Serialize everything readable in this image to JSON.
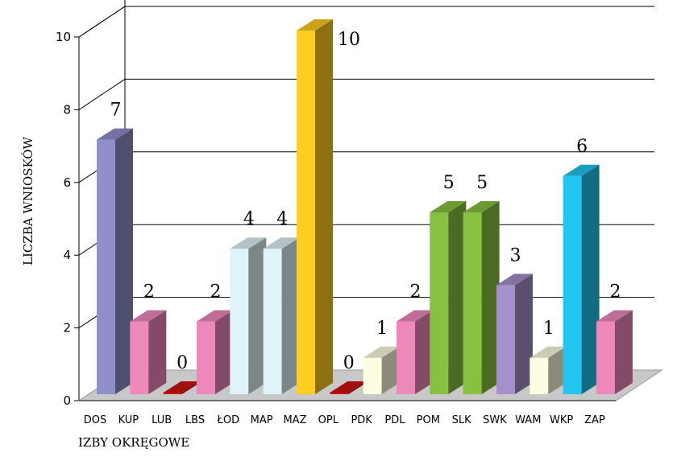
{
  "chart_data": {
    "type": "bar",
    "style": "3d",
    "categories": [
      "DOS",
      "KUP",
      "LUB",
      "LBS",
      "ŁOD",
      "MAP",
      "MAZ",
      "OPL",
      "PDK",
      "PDL",
      "POM",
      "SLK",
      "SWK",
      "WAM",
      "WKP",
      "ZAP"
    ],
    "values": [
      7,
      2,
      0,
      2,
      4,
      4,
      10,
      0,
      1,
      2,
      5,
      5,
      3,
      1,
      6,
      2
    ],
    "data_labels": [
      "7",
      "2",
      "0",
      "2",
      "4",
      "4",
      "10",
      "0",
      "1",
      "2",
      "5",
      "5",
      "3",
      "1",
      "6",
      "2"
    ],
    "colors": [
      "#8f8fcc",
      "#ee88bb",
      "#cc1111",
      "#ee88bb",
      "#dff3f8",
      "#dff3f8",
      "#ffcc22",
      "#cc1111",
      "#fdfde2",
      "#ee88bb",
      "#88c040",
      "#88c040",
      "#a58fcc",
      "#fdfde2",
      "#22c4f0",
      "#ee88bb"
    ],
    "xlabel": "IZBY OKRĘGOWE",
    "ylabel": "LICZBA WNIOSKÓW",
    "ylim": [
      0,
      10
    ],
    "yticks": [
      "0",
      "2",
      "4",
      "6",
      "8",
      "10"
    ],
    "grid": true
  }
}
